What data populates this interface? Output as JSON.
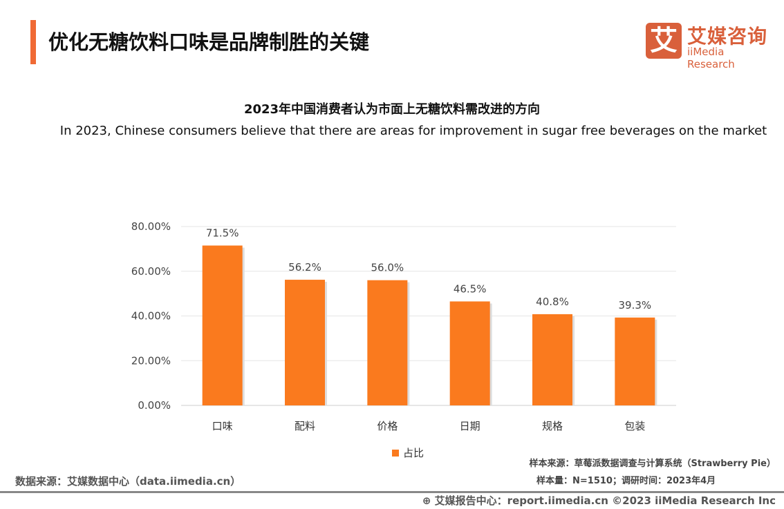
{
  "header": {
    "title": "优化无糖饮料口味是品牌制胜的关键"
  },
  "logo": {
    "mark": "艾",
    "cn": "艾媒咨询",
    "en": "iiMedia Research"
  },
  "chart_data": {
    "type": "bar",
    "title": "2023年中国消费者认为市面上无糖饮料需改进的方向",
    "subtitle": "In 2023, Chinese consumers believe that there are areas for improvement in sugar free beverages on the market",
    "categories": [
      "口味",
      "配料",
      "价格",
      "日期",
      "规格",
      "包装"
    ],
    "series": [
      {
        "name": "占比",
        "values": [
          71.5,
          56.2,
          56.0,
          46.5,
          40.8,
          39.3
        ]
      }
    ],
    "data_labels": [
      "71.5%",
      "56.2%",
      "56.0%",
      "46.5%",
      "40.8%",
      "39.3%"
    ],
    "yticks": [
      "0.00%",
      "20.00%",
      "40.00%",
      "60.00%",
      "80.00%"
    ],
    "ylim": [
      0,
      80
    ],
    "grid": true,
    "legend": "bottom",
    "color": "#fa7a1e"
  },
  "footer": {
    "source": "数据来源：艾媒数据中心（data.iimedia.cn）",
    "sample_source": "样本来源：草莓派数据调查与计算系统（Strawberry Pie）",
    "sample_size": "样本量：N=1510；调研时间：2023年4月",
    "report": "艾媒报告中心：report.iimedia.cn  ©2023  iiMedia Research  Inc"
  }
}
